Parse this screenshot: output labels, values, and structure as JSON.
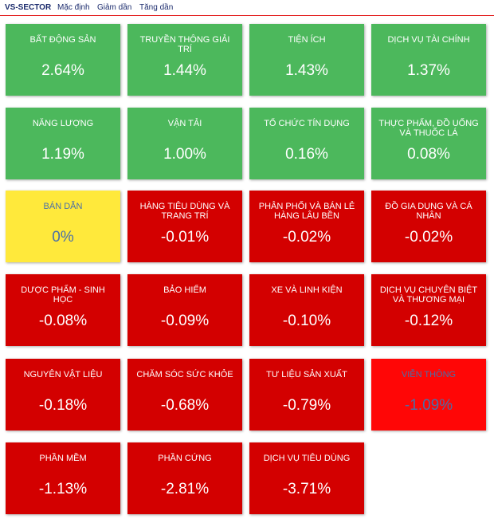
{
  "header": {
    "title": "VS-SECTOR",
    "sort_options": [
      "Mặc định",
      "Giảm dần",
      "Tăng dần"
    ]
  },
  "colors": {
    "positive": "#4cb85c",
    "negative": "#d30000",
    "neutral": "#ffe93b",
    "strong_negative": "#ff0606"
  },
  "sectors": [
    {
      "name": "BẤT ĐỘNG SẢN",
      "change": "2.64%",
      "status": "pos"
    },
    {
      "name": "TRUYỀN THÔNG GIẢI TRÍ",
      "change": "1.44%",
      "status": "pos"
    },
    {
      "name": "TIỆN ÍCH",
      "change": "1.43%",
      "status": "pos"
    },
    {
      "name": "DỊCH VỤ TÀI CHÍNH",
      "change": "1.37%",
      "status": "pos"
    },
    {
      "name": "NĂNG LƯỢNG",
      "change": "1.19%",
      "status": "pos"
    },
    {
      "name": "VẬN TẢI",
      "change": "1.00%",
      "status": "pos"
    },
    {
      "name": "TỔ CHỨC TÍN DỤNG",
      "change": "0.16%",
      "status": "pos"
    },
    {
      "name": "THỰC PHẨM, ĐỒ UỐNG VÀ THUỐC LÁ",
      "change": "0.08%",
      "status": "pos"
    },
    {
      "name": "BÁN DẪN",
      "change": "0%",
      "status": "neu"
    },
    {
      "name": "HÀNG TIÊU DÙNG VÀ TRANG TRÍ",
      "change": "-0.01%",
      "status": "neg"
    },
    {
      "name": "PHÂN PHỐI VÀ BÁN LẺ HÀNG LÂU BỀN",
      "change": "-0.02%",
      "status": "neg"
    },
    {
      "name": "ĐỒ GIA DỤNG VÀ CÁ NHÂN",
      "change": "-0.02%",
      "status": "neg"
    },
    {
      "name": "DƯỢC PHẨM - SINH HỌC",
      "change": "-0.08%",
      "status": "neg"
    },
    {
      "name": "BẢO HIỂM",
      "change": "-0.09%",
      "status": "neg"
    },
    {
      "name": "XE VÀ LINH KIỆN",
      "change": "-0.10%",
      "status": "neg"
    },
    {
      "name": "DỊCH VỤ CHUYÊN BIỆT VÀ THƯƠNG MẠI",
      "change": "-0.12%",
      "status": "neg"
    },
    {
      "name": "NGUYÊN VẬT LIỆU",
      "change": "-0.18%",
      "status": "neg"
    },
    {
      "name": "CHĂM SÓC SỨC KHỎE",
      "change": "-0.68%",
      "status": "neg"
    },
    {
      "name": "TƯ LIỆU SẢN XUẤT",
      "change": "-0.79%",
      "status": "neg"
    },
    {
      "name": "VIỄN THÔNG",
      "change": "-1.09%",
      "status": "deep"
    },
    {
      "name": "PHẦN MỀM",
      "change": "-1.13%",
      "status": "neg"
    },
    {
      "name": "PHẦN CỨNG",
      "change": "-2.81%",
      "status": "neg"
    },
    {
      "name": "DỊCH VỤ TIÊU DÙNG",
      "change": "-3.71%",
      "status": "neg"
    }
  ]
}
